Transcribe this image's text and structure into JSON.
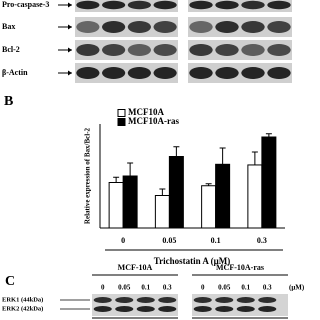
{
  "blot_top": {
    "rows": [
      "Pro-caspase-3",
      "Bax",
      "Bcl-2",
      "β-Actin"
    ]
  },
  "panel_b": {
    "label": "B"
  },
  "chart_data": {
    "type": "bar",
    "y_label": "Relative expression of Bax/Bcl-2",
    "x_label": "Trichostatin A (μM)",
    "categories": [
      "0",
      "0.05",
      "0.1",
      "0.3"
    ],
    "series": [
      {
        "name": "MCF10A",
        "color": "#ffffff",
        "values": [
          0.7,
          0.5,
          0.65,
          0.97
        ],
        "errors": [
          0.08,
          0.1,
          0.03,
          0.2
        ]
      },
      {
        "name": "MCF10A-ras",
        "color": "#000000",
        "values": [
          0.8,
          1.1,
          0.98,
          1.4
        ],
        "errors": [
          0.2,
          0.15,
          0.25,
          0.05
        ]
      }
    ],
    "ylim": [
      0,
      1.6
    ]
  },
  "panel_c": {
    "label": "C",
    "groups": [
      "MCF-10A",
      "MCF-10A-ras"
    ],
    "lanes": [
      "0",
      "0.05",
      "0.1",
      "0.3"
    ],
    "unit": "(μM)",
    "bands": [
      "ERK1 (44kDa)",
      "ERK2 (42kDa)"
    ]
  }
}
